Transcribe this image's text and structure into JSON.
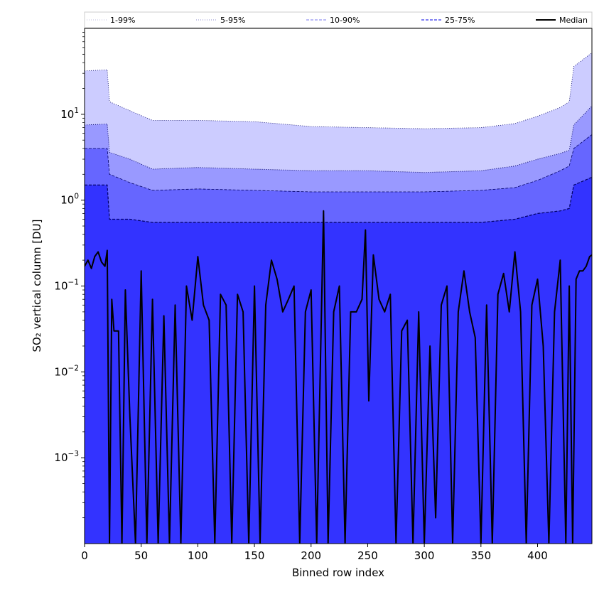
{
  "chart_data": {
    "type": "area",
    "title": "",
    "xlabel": "Binned row index",
    "ylabel": "SO₂ vertical column [DU]",
    "xlim": [
      0,
      448
    ],
    "ylim": [
      0.0001,
      100
    ],
    "yscale": "log",
    "x_ticks": [
      0,
      50,
      100,
      150,
      200,
      250,
      300,
      350,
      400
    ],
    "y_ticks": [
      {
        "value": 0.001,
        "base": "10",
        "exp": "−3"
      },
      {
        "value": 0.01,
        "base": "10",
        "exp": "−2"
      },
      {
        "value": 0.1,
        "base": "10",
        "exp": "−1"
      },
      {
        "value": 1,
        "base": "10",
        "exp": "0"
      },
      {
        "value": 10,
        "base": "10",
        "exp": "1"
      }
    ],
    "legend_position": "top",
    "legend": [
      {
        "label": "1-99%",
        "style": "dotted-thin"
      },
      {
        "label": "5-95%",
        "style": "dotted"
      },
      {
        "label": "10-90%",
        "style": "dashed-thin"
      },
      {
        "label": "25-75%",
        "style": "dashed"
      },
      {
        "label": "Median",
        "style": "solid-black"
      }
    ],
    "band_colors": {
      "1-99%": "#ffffff",
      "5-95%": "#ccccff",
      "10-90%": "#9999ff",
      "25-75%": "#6666ff",
      "inner": "#3333ff"
    },
    "series": [
      {
        "name": "1-99%",
        "x": [
          0,
          20,
          22,
          40,
          60,
          100,
          150,
          200,
          250,
          300,
          350,
          380,
          400,
          420,
          428,
          432,
          448
        ],
        "y": [
          32,
          33,
          14,
          11,
          8.5,
          8.5,
          8.2,
          7.2,
          7.0,
          6.8,
          7.0,
          7.8,
          9.5,
          12,
          14,
          36,
          52
        ]
      },
      {
        "name": "5-95%",
        "x": [
          0,
          20,
          22,
          40,
          60,
          100,
          150,
          200,
          250,
          300,
          350,
          380,
          400,
          420,
          428,
          432,
          448
        ],
        "y": [
          7.5,
          7.7,
          3.6,
          3.0,
          2.3,
          2.4,
          2.3,
          2.2,
          2.2,
          2.1,
          2.2,
          2.5,
          3.0,
          3.5,
          3.8,
          7.5,
          12.5
        ]
      },
      {
        "name": "10-90%",
        "x": [
          0,
          20,
          22,
          40,
          60,
          100,
          150,
          200,
          250,
          300,
          350,
          380,
          400,
          420,
          428,
          432,
          448
        ],
        "y": [
          4.0,
          4.0,
          2.0,
          1.6,
          1.3,
          1.35,
          1.3,
          1.25,
          1.25,
          1.25,
          1.3,
          1.4,
          1.7,
          2.2,
          2.5,
          4.0,
          5.8
        ]
      },
      {
        "name": "25-75%",
        "x": [
          0,
          20,
          22,
          40,
          60,
          100,
          150,
          200,
          250,
          300,
          350,
          380,
          400,
          420,
          428,
          432,
          448
        ],
        "y": [
          1.5,
          1.5,
          0.6,
          0.6,
          0.55,
          0.55,
          0.55,
          0.55,
          0.55,
          0.55,
          0.55,
          0.6,
          0.7,
          0.75,
          0.8,
          1.5,
          1.85
        ]
      },
      {
        "name": "Median",
        "x": [
          0,
          3,
          6,
          9,
          12,
          15,
          18,
          20,
          22,
          24,
          26,
          28,
          30,
          33,
          36,
          40,
          45,
          50,
          55,
          60,
          65,
          70,
          75,
          80,
          85,
          90,
          95,
          100,
          105,
          110,
          115,
          120,
          125,
          130,
          135,
          140,
          145,
          150,
          155,
          160,
          165,
          170,
          175,
          180,
          185,
          190,
          195,
          200,
          205,
          211,
          215,
          220,
          225,
          230,
          235,
          240,
          245,
          248,
          251,
          255,
          260,
          265,
          270,
          275,
          280,
          285,
          290,
          295,
          300,
          305,
          310,
          315,
          320,
          325,
          330,
          335,
          340,
          345,
          350,
          355,
          360,
          365,
          370,
          375,
          380,
          385,
          390,
          395,
          400,
          405,
          410,
          415,
          420,
          425,
          428,
          431,
          434,
          437,
          440,
          443,
          446,
          448
        ],
        "y": [
          0.17,
          0.2,
          0.16,
          0.22,
          0.25,
          0.19,
          0.17,
          0.26,
          0.0001,
          0.07,
          0.03,
          0.03,
          0.03,
          0.0001,
          0.09,
          0.003,
          0.0001,
          0.15,
          0.0001,
          0.07,
          0.0001,
          0.045,
          0.0001,
          0.06,
          0.0001,
          0.1,
          0.04,
          0.22,
          0.06,
          0.04,
          0.0001,
          0.08,
          0.06,
          0.0001,
          0.08,
          0.05,
          0.0001,
          0.1,
          0.0001,
          0.06,
          0.2,
          0.12,
          0.05,
          0.07,
          0.1,
          0.0001,
          0.05,
          0.09,
          0.0001,
          0.75,
          0.0001,
          0.05,
          0.1,
          0.0001,
          0.05,
          0.05,
          0.07,
          0.45,
          0.0046,
          0.23,
          0.07,
          0.05,
          0.08,
          0.0001,
          0.03,
          0.04,
          0.0001,
          0.05,
          0.0001,
          0.02,
          0.0002,
          0.06,
          0.1,
          0.0001,
          0.05,
          0.15,
          0.05,
          0.025,
          0.0001,
          0.06,
          0.0001,
          0.08,
          0.14,
          0.05,
          0.25,
          0.05,
          0.0001,
          0.06,
          0.12,
          0.02,
          0.0001,
          0.05,
          0.2,
          0.0001,
          0.1,
          0.0001,
          0.12,
          0.15,
          0.15,
          0.17,
          0.22,
          0.23
        ]
      }
    ]
  }
}
